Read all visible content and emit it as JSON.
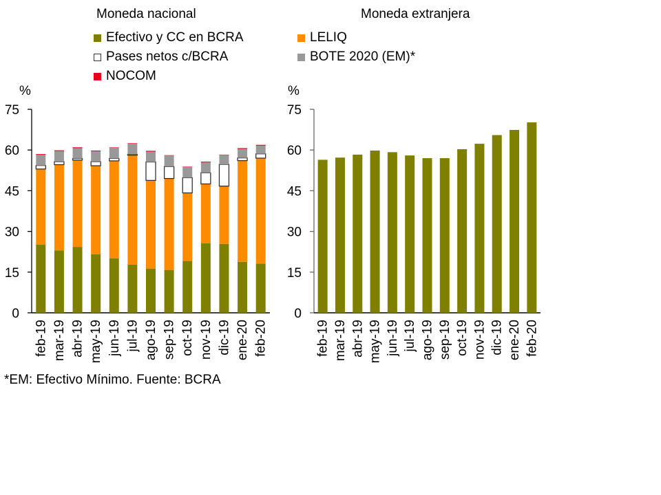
{
  "colors": {
    "efectivo": "#7f7f00",
    "leliq": "#ff8c00",
    "pases": "#ffffff",
    "bote": "#999999",
    "nocom": "#e8001c"
  },
  "legend": [
    {
      "key": "efectivo",
      "label": "Efectivo y CC en BCRA"
    },
    {
      "key": "leliq",
      "label": "LELIQ"
    },
    {
      "key": "pases",
      "label": "Pases netos c/BCRA"
    },
    {
      "key": "bote",
      "label": "BOTE 2020 (EM)*"
    },
    {
      "key": "nocom",
      "label": "NOCOM"
    }
  ],
  "footnote": "*EM: Efectivo Mínimo. Fuente: BCRA",
  "chart_data": [
    {
      "type": "bar",
      "stacked": true,
      "title": "Moneda nacional",
      "ylabel": "%",
      "xlabel": "",
      "ylim": [
        0,
        75
      ],
      "yticks": [
        0,
        15,
        30,
        45,
        60,
        75
      ],
      "grid": false,
      "legend_position": "top",
      "categories": [
        "feb-19",
        "mar-19",
        "abr-19",
        "may-19",
        "jun-19",
        "jul-19",
        "ago-19",
        "sep-19",
        "oct-19",
        "nov-19",
        "dic-19",
        "ene-20",
        "feb-20"
      ],
      "series": [
        {
          "key": "efectivo",
          "name": "Efectivo y CC en BCRA",
          "values": [
            25.1,
            23.0,
            24.3,
            21.6,
            20.1,
            17.8,
            16.3,
            15.8,
            19.1,
            25.6,
            25.4,
            18.8,
            18.1
          ]
        },
        {
          "key": "leliq",
          "name": "LELIQ",
          "values": [
            27.9,
            31.6,
            32.0,
            32.6,
            35.9,
            40.3,
            32.5,
            33.7,
            25.1,
            21.9,
            21.3,
            37.3,
            38.9
          ]
        },
        {
          "key": "pases",
          "name": "Pases netos c/BCRA",
          "values": [
            1.3,
            1.1,
            0.6,
            1.5,
            0.9,
            0.3,
            6.8,
            4.4,
            5.6,
            4.1,
            8.0,
            1.0,
            1.6
          ]
        },
        {
          "key": "bote",
          "name": "BOTE 2020 (EM)*",
          "values": [
            3.9,
            3.9,
            3.8,
            3.8,
            4.0,
            3.9,
            3.8,
            4.1,
            4.0,
            3.8,
            3.5,
            3.3,
            3.0
          ]
        },
        {
          "key": "nocom",
          "name": "NOCOM",
          "values": [
            0.3,
            0.3,
            0.3,
            0.3,
            0.1,
            0.2,
            0.3,
            0.1,
            0.1,
            0.3,
            0.1,
            0.3,
            0.3
          ]
        }
      ]
    },
    {
      "type": "bar",
      "stacked": false,
      "title": "Moneda extranjera",
      "ylabel": "%",
      "xlabel": "",
      "ylim": [
        0,
        75
      ],
      "yticks": [
        0,
        15,
        30,
        45,
        60,
        75
      ],
      "grid": false,
      "categories": [
        "feb-19",
        "mar-19",
        "abr-19",
        "may-19",
        "jun-19",
        "jul-19",
        "ago-19",
        "sep-19",
        "oct-19",
        "nov-19",
        "dic-19",
        "ene-20",
        "feb-20"
      ],
      "series": [
        {
          "key": "efectivo",
          "name": "Efectivo y CC en BCRA",
          "values": [
            56.4,
            57.2,
            58.3,
            59.8,
            59.2,
            58.0,
            57.0,
            57.0,
            60.3,
            62.3,
            65.5,
            67.4,
            70.2
          ]
        }
      ]
    }
  ]
}
